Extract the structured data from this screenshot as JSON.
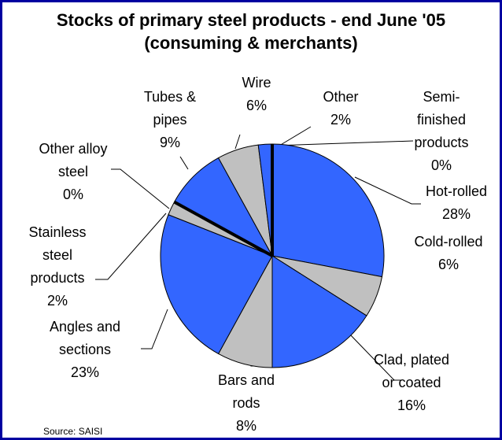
{
  "chart_data": {
    "type": "pie",
    "title": "Stocks of primary steel products - end June '05 (consuming & merchants)",
    "categories": [
      "Semi-\nfinished\nproducts",
      "Hot-rolled",
      "Cold-rolled",
      "Clad, plated\nor coated",
      "Bars and\nrods",
      "Angles and\nsections",
      "Stainless\nsteel\nproducts",
      "Other alloy\nsteel",
      "Tubes &\npipes",
      "Wire",
      "Other"
    ],
    "values": [
      0,
      28,
      6,
      16,
      8,
      23,
      2,
      0,
      9,
      6,
      2
    ],
    "value_labels": [
      "0%",
      "28%",
      "6%",
      "16%",
      "8%",
      "23%",
      "2%",
      "0%",
      "9%",
      "6%",
      "2%"
    ],
    "colors": [
      "#000000",
      "#3366ff",
      "#c0c0c0",
      "#3366ff",
      "#c0c0c0",
      "#3366ff",
      "#c0c0c0",
      "#000000",
      "#3366ff",
      "#c0c0c0",
      "#3366ff"
    ],
    "source": "Source: SAISI"
  }
}
